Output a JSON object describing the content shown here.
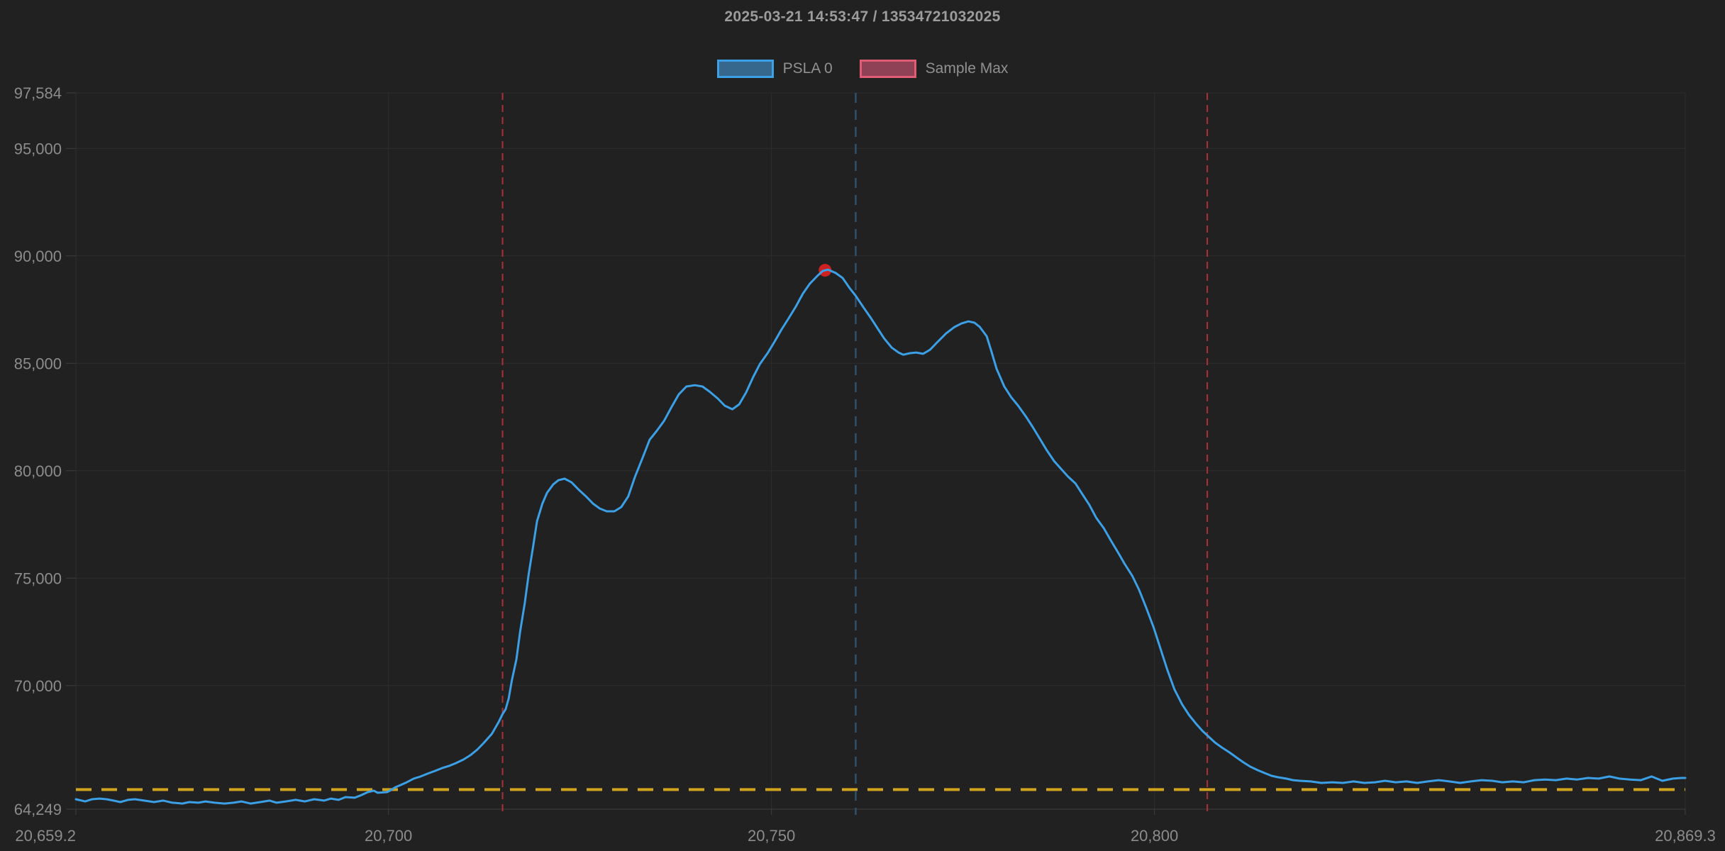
{
  "header": {
    "title": "2025-03-21 14:53:47 / 13534721032025"
  },
  "legend": {
    "items": [
      {
        "label": "PSLA 0",
        "fill": "#35688c",
        "stroke": "#3ca0e6"
      },
      {
        "label": "Sample Max",
        "fill": "#8f4156",
        "stroke": "#e05c74"
      }
    ]
  },
  "colors": {
    "background": "#212122",
    "grid": "#2d2d2d",
    "axis": "#3e3e3e",
    "tick": "#8c8c8c",
    "series_blue": "#3ca0e6",
    "marker_red": "#ce2121",
    "vline_red": "#aa3236",
    "vline_blue": "#31506c",
    "hline_yellow": "#d2a41e"
  },
  "chart_data": {
    "type": "line",
    "title": "2025-03-21 14:53:47 / 13534721032025",
    "xlabel": "",
    "ylabel": "",
    "x_range": [
      20659.2,
      20869.3
    ],
    "y_range": [
      64249,
      97584
    ],
    "grid": true,
    "legend_position": "top",
    "x_ticks": [
      {
        "v": 20659.2,
        "label": "20,659.2"
      },
      {
        "v": 20700,
        "label": "20,700"
      },
      {
        "v": 20750,
        "label": "20,750"
      },
      {
        "v": 20800,
        "label": "20,800"
      },
      {
        "v": 20869.3,
        "label": "20,869.3"
      }
    ],
    "y_ticks": [
      {
        "v": 97584,
        "label": "97,584"
      },
      {
        "v": 95000,
        "label": "95,000"
      },
      {
        "v": 90000,
        "label": "90,000"
      },
      {
        "v": 85000,
        "label": "85,000"
      },
      {
        "v": 80000,
        "label": "80,000"
      },
      {
        "v": 75000,
        "label": "75,000"
      },
      {
        "v": 70000,
        "label": "70,000"
      },
      {
        "v": 64249,
        "label": "64,249"
      }
    ],
    "annotations": {
      "sample_max_point": {
        "x": 20757.0,
        "y": 89330,
        "color": "#ce2121",
        "r": 9
      },
      "vlines": [
        {
          "x": 20714.9,
          "color": "#aa3236",
          "width": 2,
          "dash": "10 7"
        },
        {
          "x": 20806.9,
          "color": "#aa3236",
          "width": 2,
          "dash": "10 7"
        },
        {
          "x": 20761.0,
          "color": "#31506c",
          "width": 2.5,
          "dash": "14 10"
        }
      ],
      "hlines": [
        {
          "y": 65160,
          "color": "#d2a41e",
          "width": 4,
          "dash": "22 14"
        }
      ]
    },
    "series": [
      {
        "name": "PSLA 0",
        "color": "#3ca0e6",
        "width": 3,
        "points": [
          [
            20659.2,
            64710
          ],
          [
            20660.4,
            64610
          ],
          [
            20661.3,
            64710
          ],
          [
            20662.3,
            64740
          ],
          [
            20663.2,
            64710
          ],
          [
            20664.1,
            64650
          ],
          [
            20665.0,
            64580
          ],
          [
            20666.0,
            64680
          ],
          [
            20666.9,
            64710
          ],
          [
            20668.1,
            64650
          ],
          [
            20669.4,
            64580
          ],
          [
            20670.6,
            64650
          ],
          [
            20671.8,
            64550
          ],
          [
            20673.1,
            64510
          ],
          [
            20674.0,
            64580
          ],
          [
            20675.2,
            64550
          ],
          [
            20676.1,
            64610
          ],
          [
            20677.3,
            64550
          ],
          [
            20678.6,
            64510
          ],
          [
            20679.8,
            64550
          ],
          [
            20680.8,
            64610
          ],
          [
            20682.0,
            64510
          ],
          [
            20683.3,
            64580
          ],
          [
            20684.5,
            64650
          ],
          [
            20685.4,
            64550
          ],
          [
            20686.6,
            64610
          ],
          [
            20687.9,
            64680
          ],
          [
            20689.1,
            64610
          ],
          [
            20690.3,
            64710
          ],
          [
            20691.6,
            64650
          ],
          [
            20692.5,
            64740
          ],
          [
            20693.5,
            64680
          ],
          [
            20694.4,
            64810
          ],
          [
            20695.6,
            64780
          ],
          [
            20696.5,
            64910
          ],
          [
            20697.3,
            65040
          ],
          [
            20698.1,
            65110
          ],
          [
            20698.6,
            65010
          ],
          [
            20699.8,
            65040
          ],
          [
            20700.2,
            65110
          ],
          [
            20700.9,
            65270
          ],
          [
            20701.4,
            65340
          ],
          [
            20702.4,
            65500
          ],
          [
            20703.3,
            65670
          ],
          [
            20704.2,
            65770
          ],
          [
            20705.1,
            65900
          ],
          [
            20706.1,
            66030
          ],
          [
            20707.0,
            66160
          ],
          [
            20707.9,
            66260
          ],
          [
            20708.8,
            66390
          ],
          [
            20709.8,
            66560
          ],
          [
            20710.7,
            66760
          ],
          [
            20711.6,
            67020
          ],
          [
            20712.5,
            67350
          ],
          [
            20713.5,
            67750
          ],
          [
            20714.4,
            68310
          ],
          [
            20714.9,
            68670
          ],
          [
            20715.3,
            68900
          ],
          [
            20715.7,
            69400
          ],
          [
            20716.1,
            70220
          ],
          [
            20716.7,
            71210
          ],
          [
            20717.2,
            72530
          ],
          [
            20717.8,
            73850
          ],
          [
            20718.3,
            75170
          ],
          [
            20718.9,
            76490
          ],
          [
            20719.4,
            77650
          ],
          [
            20720.1,
            78470
          ],
          [
            20720.7,
            78970
          ],
          [
            20721.5,
            79360
          ],
          [
            20722.2,
            79560
          ],
          [
            20723.0,
            79630
          ],
          [
            20723.9,
            79460
          ],
          [
            20724.8,
            79130
          ],
          [
            20725.8,
            78800
          ],
          [
            20726.7,
            78470
          ],
          [
            20727.6,
            78240
          ],
          [
            20728.5,
            78110
          ],
          [
            20729.5,
            78110
          ],
          [
            20730.4,
            78310
          ],
          [
            20731.3,
            78800
          ],
          [
            20732.2,
            79730
          ],
          [
            20733.2,
            80620
          ],
          [
            20734.1,
            81440
          ],
          [
            20735.0,
            81840
          ],
          [
            20736.0,
            82330
          ],
          [
            20737.0,
            82990
          ],
          [
            20737.9,
            83550
          ],
          [
            20738.9,
            83920
          ],
          [
            20740.0,
            83980
          ],
          [
            20741.0,
            83920
          ],
          [
            20741.9,
            83690
          ],
          [
            20743.0,
            83360
          ],
          [
            20743.9,
            83030
          ],
          [
            20744.9,
            82860
          ],
          [
            20745.8,
            83090
          ],
          [
            20746.7,
            83650
          ],
          [
            20747.6,
            84350
          ],
          [
            20748.5,
            84970
          ],
          [
            20749.5,
            85470
          ],
          [
            20750.4,
            86000
          ],
          [
            20751.3,
            86560
          ],
          [
            20752.3,
            87120
          ],
          [
            20753.2,
            87650
          ],
          [
            20754.1,
            88240
          ],
          [
            20755.0,
            88700
          ],
          [
            20756.0,
            89070
          ],
          [
            20756.7,
            89300
          ],
          [
            20757.4,
            89360
          ],
          [
            20758.4,
            89200
          ],
          [
            20759.3,
            88970
          ],
          [
            20760.2,
            88500
          ],
          [
            20761.0,
            88140
          ],
          [
            20762.0,
            87610
          ],
          [
            20762.9,
            87150
          ],
          [
            20763.8,
            86660
          ],
          [
            20764.7,
            86160
          ],
          [
            20765.7,
            85730
          ],
          [
            20766.6,
            85500
          ],
          [
            20767.2,
            85400
          ],
          [
            20768.1,
            85470
          ],
          [
            20768.9,
            85500
          ],
          [
            20769.8,
            85440
          ],
          [
            20770.7,
            85630
          ],
          [
            20771.7,
            86000
          ],
          [
            20772.8,
            86390
          ],
          [
            20773.9,
            86690
          ],
          [
            20774.8,
            86850
          ],
          [
            20775.7,
            86950
          ],
          [
            20776.5,
            86890
          ],
          [
            20777.2,
            86690
          ],
          [
            20778.1,
            86260
          ],
          [
            20778.7,
            85570
          ],
          [
            20779.4,
            84740
          ],
          [
            20780.4,
            83920
          ],
          [
            20781.3,
            83420
          ],
          [
            20782.2,
            83030
          ],
          [
            20783.2,
            82530
          ],
          [
            20784.1,
            82040
          ],
          [
            20785.0,
            81510
          ],
          [
            20785.9,
            80980
          ],
          [
            20786.9,
            80450
          ],
          [
            20787.8,
            80090
          ],
          [
            20788.7,
            79730
          ],
          [
            20789.7,
            79400
          ],
          [
            20790.6,
            78900
          ],
          [
            20791.5,
            78410
          ],
          [
            20792.4,
            77810
          ],
          [
            20793.4,
            77320
          ],
          [
            20794.3,
            76760
          ],
          [
            20795.2,
            76230
          ],
          [
            20796.1,
            75670
          ],
          [
            20797.1,
            75110
          ],
          [
            20798.0,
            74450
          ],
          [
            20798.9,
            73650
          ],
          [
            20799.9,
            72700
          ],
          [
            20800.8,
            71710
          ],
          [
            20801.7,
            70720
          ],
          [
            20802.6,
            69830
          ],
          [
            20803.6,
            69130
          ],
          [
            20804.5,
            68640
          ],
          [
            20805.4,
            68240
          ],
          [
            20806.3,
            67880
          ],
          [
            20807.0,
            67650
          ],
          [
            20807.9,
            67350
          ],
          [
            20808.8,
            67120
          ],
          [
            20809.8,
            66890
          ],
          [
            20810.7,
            66660
          ],
          [
            20811.6,
            66430
          ],
          [
            20812.5,
            66230
          ],
          [
            20813.5,
            66060
          ],
          [
            20814.4,
            65930
          ],
          [
            20815.3,
            65800
          ],
          [
            20816.2,
            65730
          ],
          [
            20817.2,
            65670
          ],
          [
            20818.1,
            65600
          ],
          [
            20819.0,
            65570
          ],
          [
            20820.4,
            65540
          ],
          [
            20821.8,
            65470
          ],
          [
            20823.2,
            65500
          ],
          [
            20824.6,
            65470
          ],
          [
            20826.0,
            65540
          ],
          [
            20827.4,
            65470
          ],
          [
            20828.8,
            65500
          ],
          [
            20830.1,
            65570
          ],
          [
            20831.5,
            65500
          ],
          [
            20832.9,
            65540
          ],
          [
            20834.3,
            65470
          ],
          [
            20835.7,
            65540
          ],
          [
            20837.1,
            65600
          ],
          [
            20838.5,
            65540
          ],
          [
            20839.9,
            65470
          ],
          [
            20841.3,
            65540
          ],
          [
            20842.7,
            65600
          ],
          [
            20844.1,
            65570
          ],
          [
            20845.4,
            65500
          ],
          [
            20846.8,
            65540
          ],
          [
            20848.2,
            65500
          ],
          [
            20849.6,
            65600
          ],
          [
            20851.0,
            65630
          ],
          [
            20852.4,
            65600
          ],
          [
            20853.8,
            65670
          ],
          [
            20855.2,
            65630
          ],
          [
            20856.6,
            65700
          ],
          [
            20858.0,
            65670
          ],
          [
            20859.4,
            65770
          ],
          [
            20860.7,
            65670
          ],
          [
            20862.1,
            65630
          ],
          [
            20863.5,
            65600
          ],
          [
            20864.9,
            65770
          ],
          [
            20866.3,
            65570
          ],
          [
            20867.7,
            65670
          ],
          [
            20868.8,
            65700
          ],
          [
            20869.3,
            65700
          ]
        ]
      }
    ]
  }
}
